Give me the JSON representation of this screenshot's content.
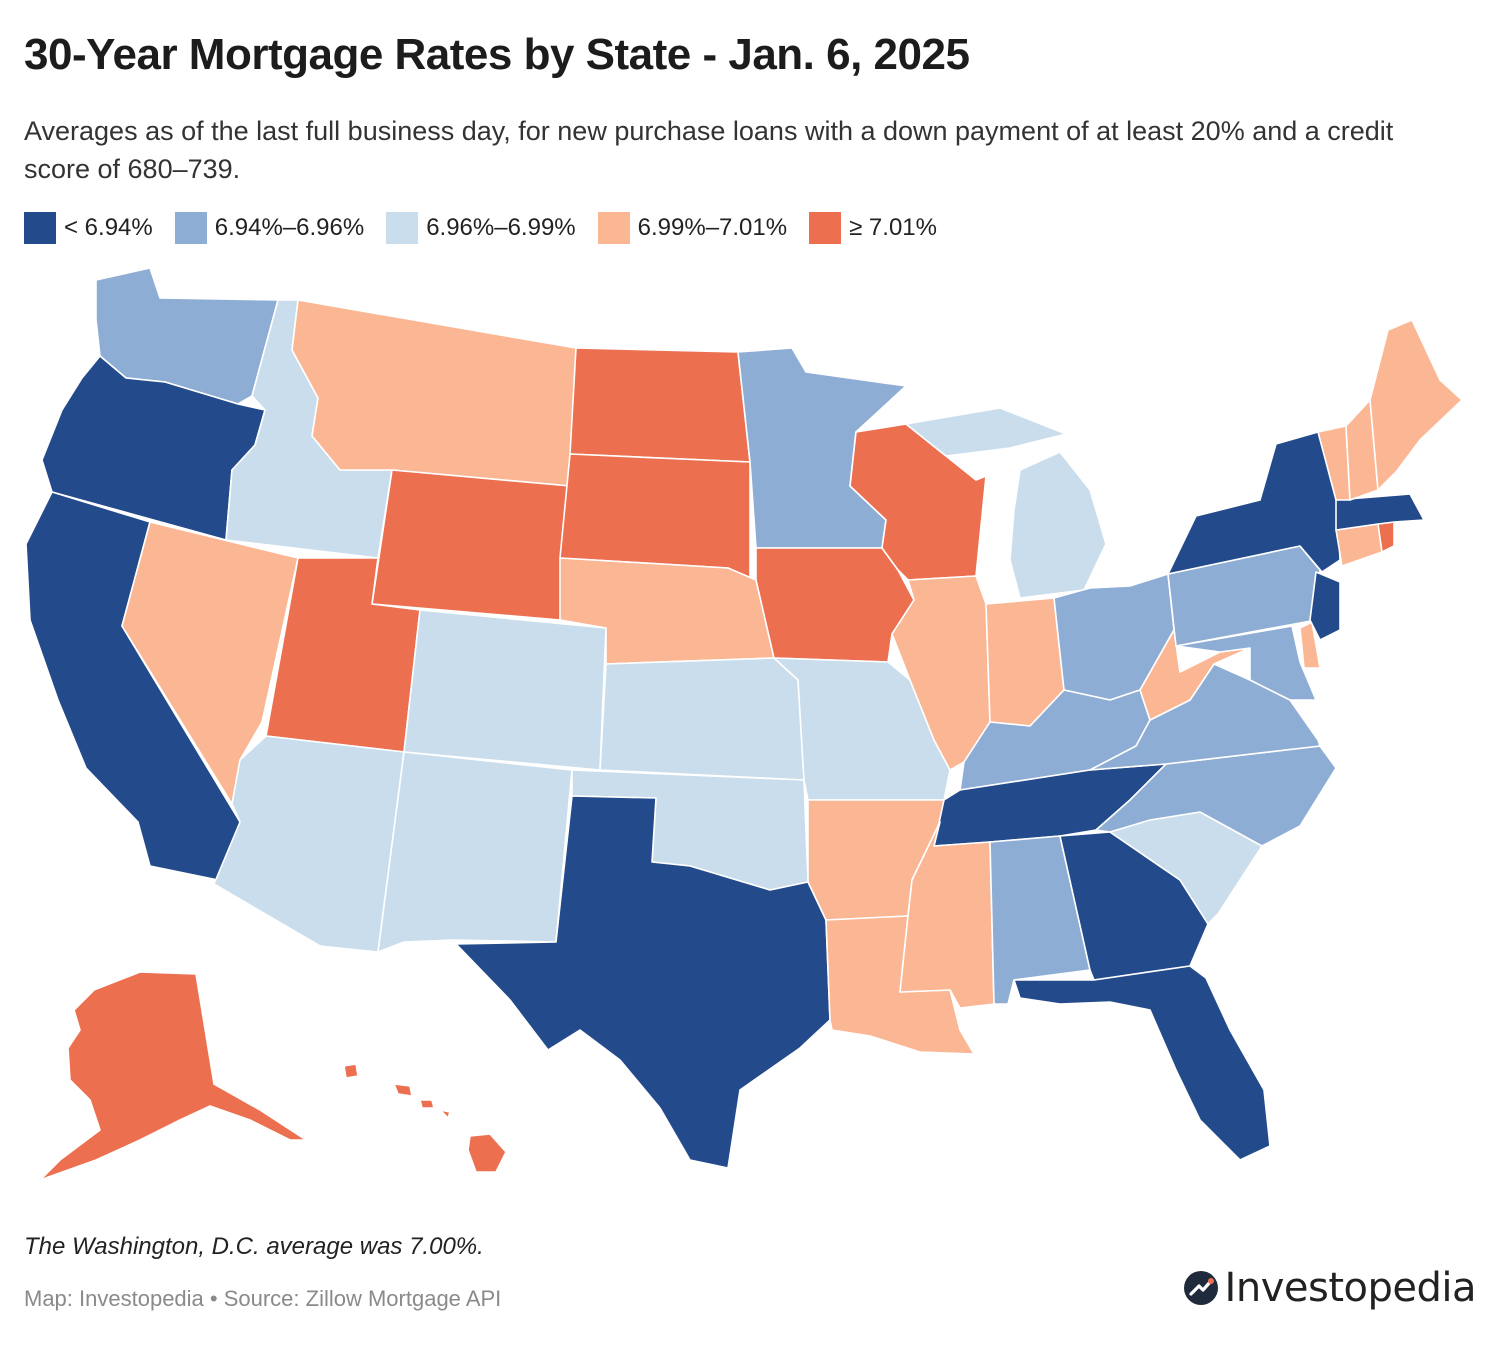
{
  "header": {
    "title": "30-Year Mortgage Rates by State - Jan. 6, 2025",
    "subtitle": "Averages as of the last full business day, for new purchase loans with a down payment of at least 20% and a credit score of 680–739."
  },
  "legend": {
    "items": [
      {
        "label": "< 6.94%",
        "color": "#234a8a"
      },
      {
        "label": "6.94%–6.96%",
        "color": "#8eadd4"
      },
      {
        "label": "6.96%–6.99%",
        "color": "#c9ddec"
      },
      {
        "label": "6.99%–7.01%",
        "color": "#fbb694"
      },
      {
        "label": "≥ 7.01%",
        "color": "#ec7050"
      }
    ]
  },
  "chart_data": {
    "type": "choropleth",
    "classes": [
      "< 6.94%",
      "6.94%–6.96%",
      "6.96%–6.99%",
      "6.99%–7.01%",
      "≥ 7.01%"
    ],
    "states": {
      "WA": 1,
      "OR": 0,
      "CA": 0,
      "NV": 3,
      "ID": 2,
      "MT": 3,
      "WY": 4,
      "UT": 4,
      "AZ": 2,
      "CO": 2,
      "NM": 2,
      "ND": 4,
      "SD": 4,
      "NE": 3,
      "KS": 2,
      "OK": 2,
      "TX": 0,
      "MN": 1,
      "IA": 4,
      "MO": 2,
      "AR": 3,
      "LA": 3,
      "WI": 4,
      "IL": 3,
      "MI": 2,
      "IN": 3,
      "OH": 1,
      "KY": 1,
      "TN": 0,
      "MS": 3,
      "AL": 1,
      "GA": 0,
      "FL": 0,
      "SC": 2,
      "NC": 1,
      "VA": 1,
      "WV": 3,
      "PA": 1,
      "NY": 0,
      "NJ": 0,
      "DE": 3,
      "MD": 1,
      "CT": 3,
      "RI": 4,
      "MA": 0,
      "VT": 3,
      "NH": 3,
      "ME": 3,
      "AK": 4,
      "HI": 4
    }
  },
  "footer": {
    "note": "The Washington, D.C. average was 7.00%.",
    "source": "Map: Investopedia • Source: Zillow Mortgage API",
    "brand": "Investopedia"
  }
}
